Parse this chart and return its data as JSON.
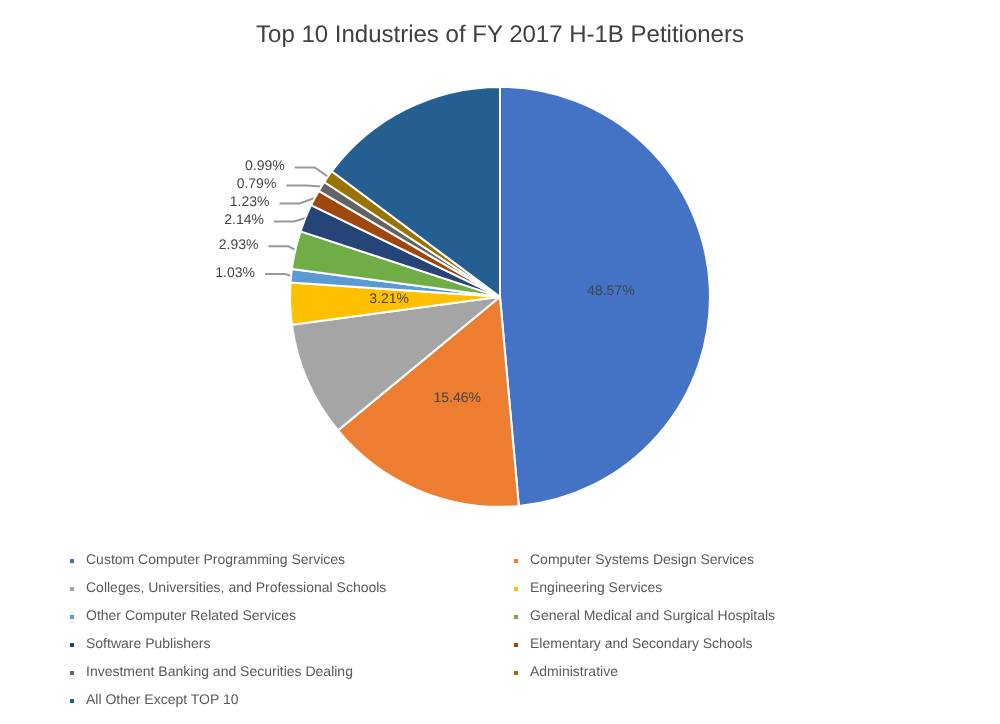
{
  "chart_data": {
    "type": "pie",
    "title": "Top 10 Industries of FY 2017 H-1B Petitioners",
    "categories": [
      "Custom Computer Programming Services",
      "Computer Systems Design Services",
      "Colleges, Universities, and Professional Schools",
      "Engineering Services",
      "Other Computer Related Services",
      "General Medical and Surgical Hospitals",
      "Software Publishers",
      "Elementary and Secondary Schools",
      "Investment Banking and Securities Dealing",
      "Administrative",
      "All Other Except TOP 10"
    ],
    "values": [
      48.57,
      15.46,
      8.85,
      3.21,
      1.03,
      2.93,
      2.14,
      1.23,
      0.79,
      0.99,
      14.8
    ],
    "value_labels": [
      "48.57%",
      "15.46%",
      null,
      "3.21%",
      "1.03%",
      "2.93%",
      "2.14%",
      "1.23%",
      "0.79%",
      "0.99%",
      null
    ],
    "colors": [
      "#4472c4",
      "#ed7d31",
      "#a5a5a5",
      "#ffc000",
      "#5b9bd5",
      "#70ad47",
      "#264478",
      "#9e480e",
      "#636363",
      "#997300",
      "#255e91"
    ],
    "legend": "bottom"
  }
}
